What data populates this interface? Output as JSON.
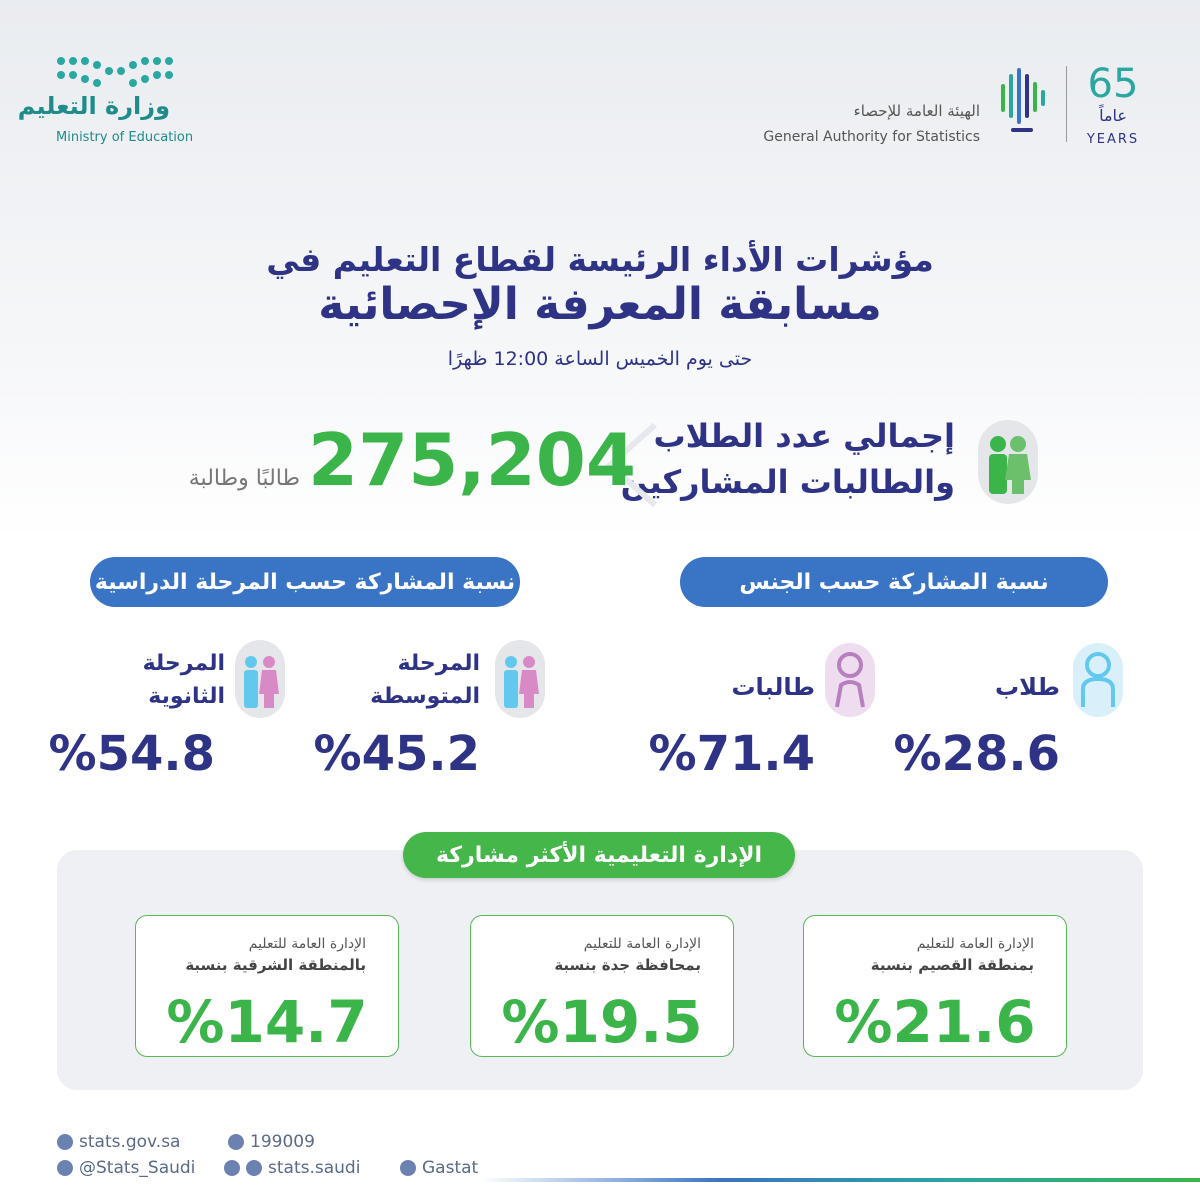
{
  "header": {
    "moe_ar": "وزارة التعليم",
    "moe_en": "Ministry of Education",
    "gastat_ar": "الهيئة العامة للإحصاء",
    "gastat_en": "General Authority for Statistics",
    "anniversary_number": "65",
    "anniversary_ar": "عاماً",
    "anniversary_en": "YEARS"
  },
  "title": {
    "line1": "مؤشرات الأداء الرئيسة لقطاع التعليم في",
    "line2": "مسابقة المعرفة الإحصائية",
    "subtitle": "حتى يوم الخميس الساعة 12:00 ظهرًا"
  },
  "total": {
    "label_lines": [
      "إجمالي عدد الطلاب",
      "والطالبات المشاركين"
    ],
    "value": "275,204",
    "unit": "طالبًا وطالبة"
  },
  "gender": {
    "heading": "نسبة المشاركة حسب الجنس",
    "items": [
      {
        "label": "طلاب",
        "value": "%28.6"
      },
      {
        "label": "طالبات",
        "value": "%71.4"
      }
    ]
  },
  "stage": {
    "heading": "نسبة المشاركة حسب المرحلة الدراسية",
    "items": [
      {
        "label_lines": [
          "المرحلة",
          "المتوسطة"
        ],
        "value": "%45.2"
      },
      {
        "label_lines": [
          "المرحلة",
          "الثانوية"
        ],
        "value": "%54.8"
      }
    ]
  },
  "regions": {
    "heading": "الإدارة التعليمية الأكثر مشاركة",
    "cards": [
      {
        "line1": "الإدارة العامة للتعليم",
        "line2": "بمنطقة القصيم بنسبة",
        "value": "%21.6"
      },
      {
        "line1": "الإدارة العامة للتعليم",
        "line2": "بمحافظة جدة بنسبة",
        "value": "%19.5"
      },
      {
        "line1": "الإدارة العامة للتعليم",
        "line2": "بالمنطقة الشرقية بنسبة",
        "value": "%14.7"
      }
    ]
  },
  "footer": {
    "website": "stats.gov.sa",
    "phone": "199009",
    "x_handle": "@Stats_Saudi",
    "social": "stats.saudi",
    "linkedin": "Gastat"
  }
}
